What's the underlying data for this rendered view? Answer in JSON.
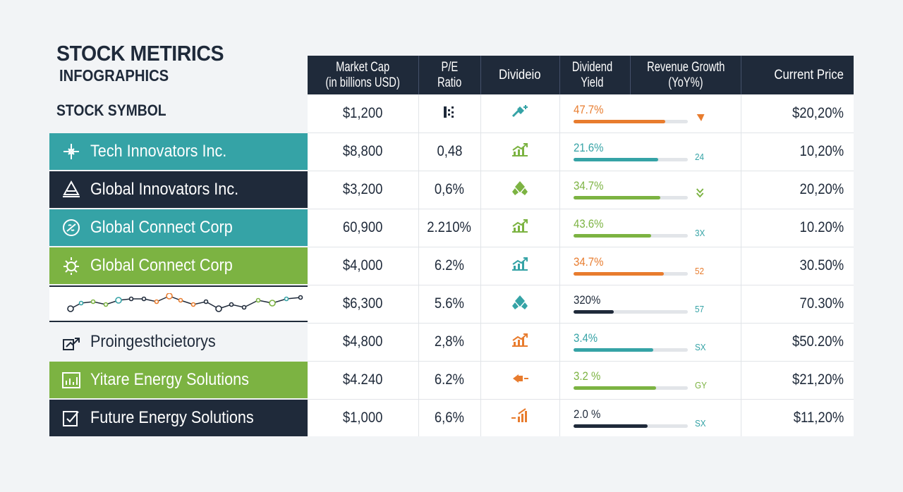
{
  "title": "STOCK METIRICS",
  "subtitle": "INFOGRAPHICS",
  "symbol_header": "STOCK SYMBOL",
  "columns": [
    {
      "key": "cap",
      "label_line1": "Market Cap",
      "label_line2": "(in billions USD)"
    },
    {
      "key": "pe",
      "label_line1": "P/E",
      "label_line2": "Ratio"
    },
    {
      "key": "div",
      "label_line1": "Divideio",
      "label_line2": ""
    },
    {
      "key": "yield",
      "label_line1": "Dividend",
      "label_line2": "Yield"
    },
    {
      "key": "growth",
      "label_line1": "Revenue Growth",
      "label_line2": "(YoY%)"
    },
    {
      "key": "price",
      "label_line1": "Current Price",
      "label_line2": ""
    }
  ],
  "colors": {
    "navy": "#1f2a3a",
    "teal": "#35a3a6",
    "green": "#7cb342",
    "orange": "#e87c2e"
  },
  "rows": [
    {
      "symbol": "",
      "symbol_style": "none",
      "symbol_icon": "",
      "cap": "$1,200",
      "pe": "",
      "pe_icon": "scatter-glyph-icon",
      "div_icon": "sparkle-arrow-icon",
      "div_color": "#35a3a6",
      "yield": "47.7%",
      "yield_fraction": 0.8,
      "yield_color": "#e87c2e",
      "growth": "",
      "growth_icon": "arrow-down-right-icon",
      "growth_color": "#e87c2e",
      "price": "$20,20%"
    },
    {
      "symbol": "Tech Innovators Inc.",
      "symbol_style": "teal",
      "symbol_icon": "tech-circuit-icon",
      "cap": "$8,800",
      "pe": "0,48",
      "div_icon": "rising-chart-icon",
      "div_color": "#7cb342",
      "yield": "21.6%",
      "yield_fraction": 0.74,
      "yield_color": "#35a3a6",
      "growth": "24",
      "growth_color": "#35a3a6",
      "price": "10,20%"
    },
    {
      "symbol": "Global Innovators Inc.",
      "symbol_style": "navy",
      "symbol_icon": "network-pyramid-icon",
      "cap": "$3,200",
      "pe": "0,6%",
      "div_icon": "diamond-cluster-icon",
      "div_color": "#7cb342",
      "yield": "34.7%",
      "yield_fraction": 0.76,
      "yield_color": "#7cb342",
      "growth": "",
      "growth_icon": "double-chevron-down-icon",
      "growth_color": "#7cb342",
      "price": "20,20%"
    },
    {
      "symbol": "Global Connect Corp",
      "symbol_style": "teal",
      "symbol_icon": "link-globe-icon",
      "cap": "60,900",
      "pe": "2.210%",
      "div_icon": "rising-chart-icon",
      "div_color": "#7cb342",
      "yield": "43.6%",
      "yield_fraction": 0.68,
      "yield_color": "#7cb342",
      "growth": "3X",
      "growth_color": "#35a3a6",
      "price": "10.20%"
    },
    {
      "symbol": "Global Connect Corp",
      "symbol_style": "green",
      "symbol_icon": "sun-gear-icon",
      "cap": "$4,000",
      "pe": "6.2%",
      "div_icon": "rising-chart-icon",
      "div_color": "#35a3a6",
      "yield": "34.7%",
      "yield_fraction": 0.79,
      "yield_color": "#e87c2e",
      "growth": "52",
      "growth_color": "#e87c2e",
      "price": "30.50%"
    },
    {
      "symbol": "",
      "symbol_style": "sparkline",
      "symbol_icon": "",
      "cap": "$6,300",
      "pe": "5.6%",
      "div_icon": "diamond-cluster-icon",
      "div_color": "#35a3a6",
      "yield": "320%",
      "yield_fraction": 0.35,
      "yield_color": "#1f2a3a",
      "growth": "57",
      "growth_color": "#35a3a6",
      "price": "70.30%"
    },
    {
      "symbol": "Proingesthcietorys",
      "symbol_style": "plain",
      "symbol_icon": "arrow-chart-icon",
      "cap": "$4,800",
      "pe": "2,8%",
      "div_icon": "rising-chart-icon",
      "div_color": "#e87c2e",
      "yield": "3.4%",
      "yield_fraction": 0.7,
      "yield_color": "#35a3a6",
      "growth": "SX",
      "growth_color": "#35a3a6",
      "price": "$50.20%"
    },
    {
      "symbol": "Yitare Energy Solutions",
      "symbol_style": "green",
      "symbol_icon": "bar-frame-icon",
      "cap": "$4.240",
      "pe": "6.2%",
      "div_icon": "arrow-tag-icon",
      "div_color": "#e87c2e",
      "yield": "3.2 %",
      "yield_fraction": 0.72,
      "yield_color": "#7cb342",
      "growth": "GY",
      "growth_color": "#7cb342",
      "price": "$21,20%"
    },
    {
      "symbol": "Future Energy Solutions",
      "symbol_style": "navy",
      "symbol_icon": "checklist-icon",
      "cap": "$1,000",
      "pe": "6,6%",
      "div_icon": "bar-growth-icon",
      "div_color": "#e87c2e",
      "yield": "2.0 %",
      "yield_fraction": 0.65,
      "yield_color": "#1f2a3a",
      "growth": "SX",
      "growth_color": "#35a3a6",
      "price": "$11,20%"
    }
  ]
}
